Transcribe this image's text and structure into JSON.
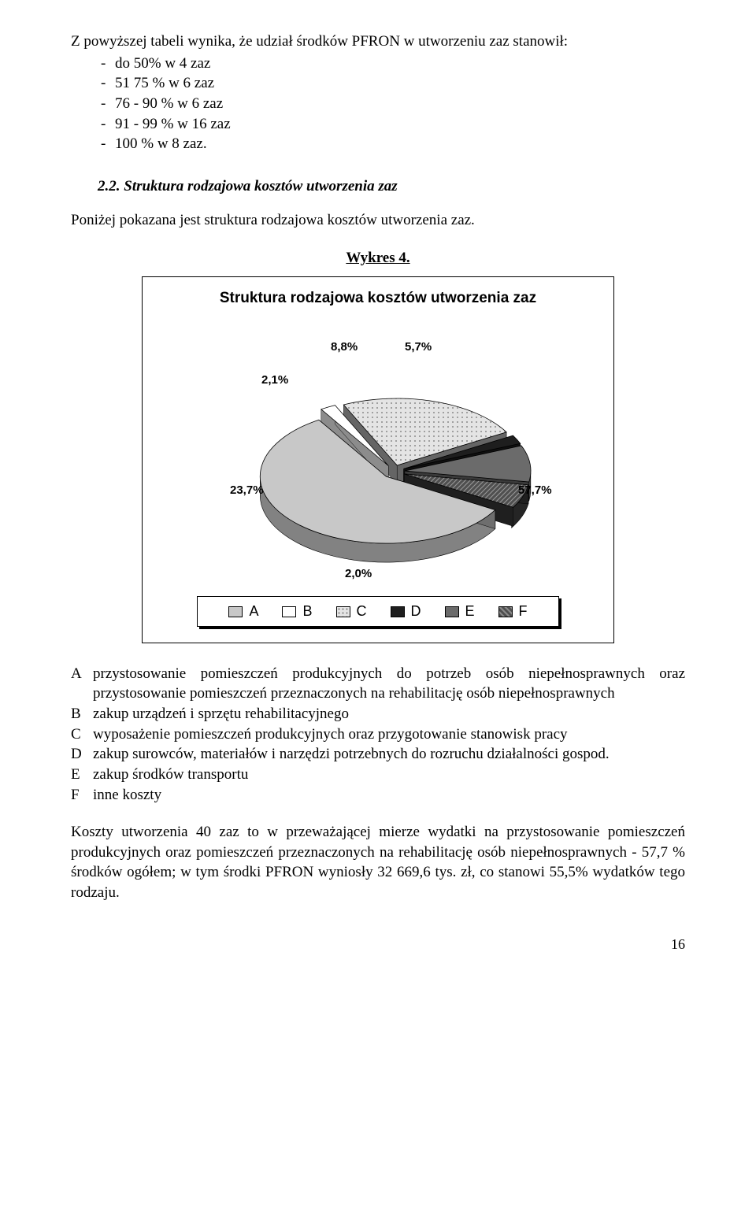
{
  "intro": "Z powyższej tabeli wynika, że udział środków PFRON w utworzeniu zaz stanowił:",
  "bullets": [
    "do 50% w 4 zaz",
    "51 75 % w 6 zaz",
    "76 - 90 % w 6 zaz",
    "91 - 99 % w 16 zaz",
    "100 % w 8 zaz."
  ],
  "section_number": "2.2.",
  "section_title": "Struktura rodzajowa kosztów utworzenia zaz",
  "section_body": "Poniżej pokazana jest struktura rodzajowa kosztów utworzenia zaz.",
  "wykres_label": "Wykres 4.",
  "chart": {
    "title": "Struktura rodzajowa kosztów utworzenia zaz",
    "type": "pie-3d-exploded",
    "slices": [
      {
        "key": "A",
        "value": 57.7,
        "label": "57,7%",
        "fill": "#c8c8c8",
        "hatch": "none"
      },
      {
        "key": "B",
        "value": 2.0,
        "label": "2,0%",
        "fill": "#ffffff",
        "hatch": "none"
      },
      {
        "key": "C",
        "value": 23.7,
        "label": "23,7%",
        "fill": "#e4e4e4",
        "hatch": "dots"
      },
      {
        "key": "D",
        "value": 2.1,
        "label": "2,1%",
        "fill": "#1e1e1e",
        "hatch": "none"
      },
      {
        "key": "E",
        "value": 8.8,
        "label": "8,8%",
        "fill": "#6b6b6b",
        "hatch": "none"
      },
      {
        "key": "F",
        "value": 5.7,
        "label": "5,7%",
        "fill": "#4f4f4f",
        "hatch": "diag"
      }
    ],
    "legend_order": [
      "A",
      "B",
      "C",
      "D",
      "E",
      "F"
    ],
    "background": "#ffffff",
    "border": "#000000"
  },
  "descriptions": {
    "A": "przystosowanie pomieszczeń produkcyjnych do potrzeb osób niepełnosprawnych oraz przystosowanie pomieszczeń przeznaczonych na rehabilitację osób niepełnosprawnych",
    "B": "zakup urządzeń i sprzętu rehabilitacyjnego",
    "C": "wyposażenie pomieszczeń produkcyjnych oraz przygotowanie stanowisk pracy",
    "D": "zakup surowców, materiałów i narzędzi potrzebnych do rozruchu działalności gospod.",
    "E": "zakup środków transportu",
    "F": "inne koszty"
  },
  "summary": "Koszty utworzenia 40 zaz to w przeważającej mierze wydatki na przystosowanie pomieszczeń produkcyjnych oraz pomieszczeń przeznaczonych na rehabilitację osób niepełnosprawnych - 57,7 % środków ogółem; w tym środki PFRON wyniosły 32 669,6 tys. zł, co stanowi 55,5% wydatków tego rodzaju.",
  "page_number": "16"
}
